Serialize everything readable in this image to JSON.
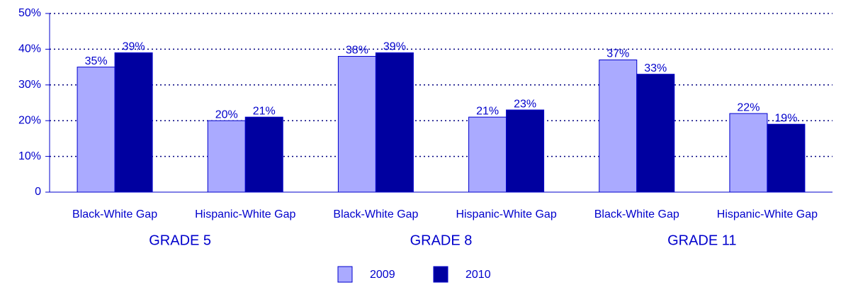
{
  "chart_data": {
    "type": "bar",
    "categories": [
      "Black-White Gap",
      "Hispanic-White Gap",
      "Black-White Gap",
      "Hispanic-White Gap",
      "Black-White Gap",
      "Hispanic-White Gap"
    ],
    "groups": [
      "GRADE 5",
      "GRADE 8",
      "GRADE 11"
    ],
    "series": [
      {
        "name": "2009",
        "color": "#aaaaff",
        "values": [
          35,
          20,
          38,
          21,
          37,
          22
        ],
        "value_labels": [
          "35%",
          "20%",
          "38%",
          "21%",
          "37%",
          "22%"
        ]
      },
      {
        "name": "2010",
        "color": "#0000a0",
        "values": [
          39,
          21,
          39,
          23,
          33,
          19
        ],
        "value_labels": [
          "39%",
          "21%",
          "39%",
          "23%",
          "33%",
          "19%"
        ]
      }
    ],
    "ylim": [
      0,
      50
    ],
    "yticks": [
      0,
      {
        "value": 10,
        "label": "10%"
      },
      {
        "value": 20,
        "label": "20%"
      },
      {
        "value": 30,
        "label": "30%"
      },
      {
        "value": 40,
        "label": "40%"
      },
      {
        "value": 50,
        "label": "50%"
      }
    ],
    "grid": true,
    "legend": "bottom"
  }
}
